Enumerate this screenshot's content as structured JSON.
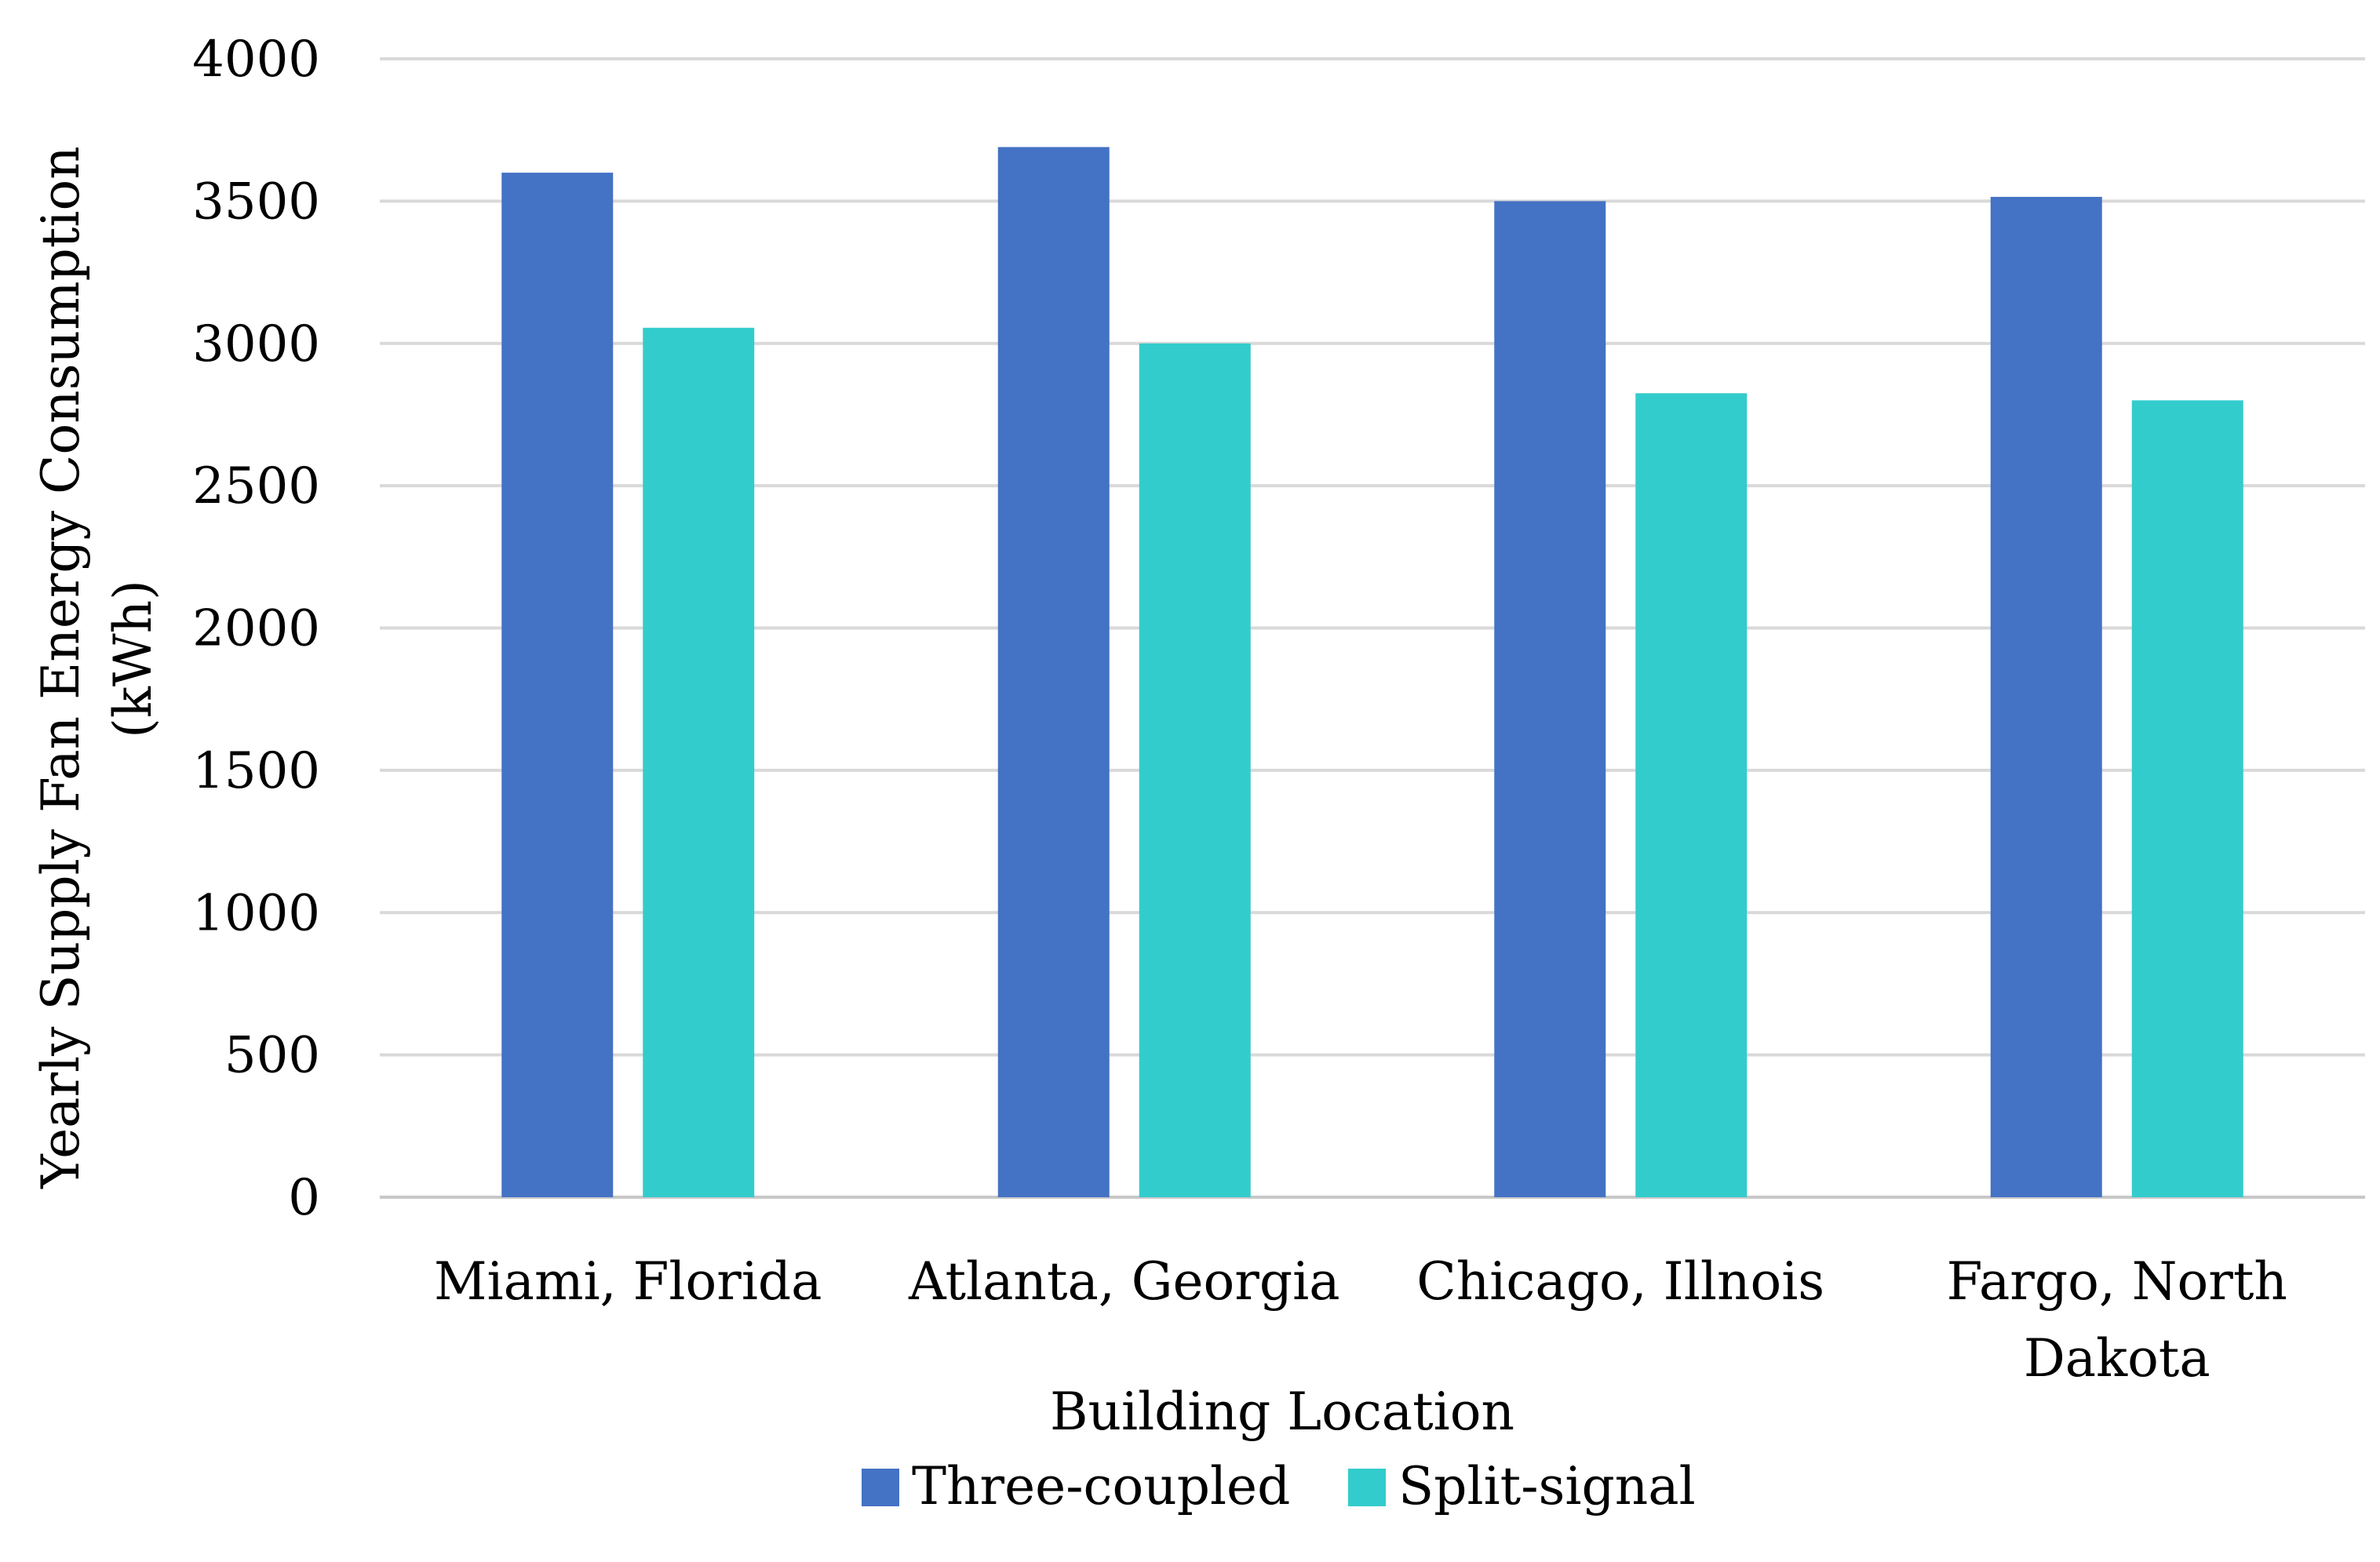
{
  "chart_data": {
    "type": "bar",
    "title": "",
    "xlabel": "Building Location",
    "ylabel_lines": [
      "Yearly Supply Fan Energy Consumption",
      "(kWh)"
    ],
    "categories": [
      [
        "Miami, Florida"
      ],
      [
        "Atlanta, Georgia"
      ],
      [
        "Chicago, Illnois"
      ],
      [
        "Fargo, North",
        "Dakota"
      ]
    ],
    "series": [
      {
        "name": "Three-coupled",
        "color": "#4472C4",
        "values": [
          3600,
          3690,
          3500,
          3515
        ]
      },
      {
        "name": "Split-signal",
        "color": "#33CCCC",
        "values": [
          3055,
          3000,
          2825,
          2800
        ]
      }
    ],
    "ylim": [
      0,
      4000
    ],
    "yticks": [
      0,
      500,
      1000,
      1500,
      2000,
      2500,
      3000,
      3500,
      4000
    ],
    "grid": true,
    "legend_position": "bottom"
  }
}
